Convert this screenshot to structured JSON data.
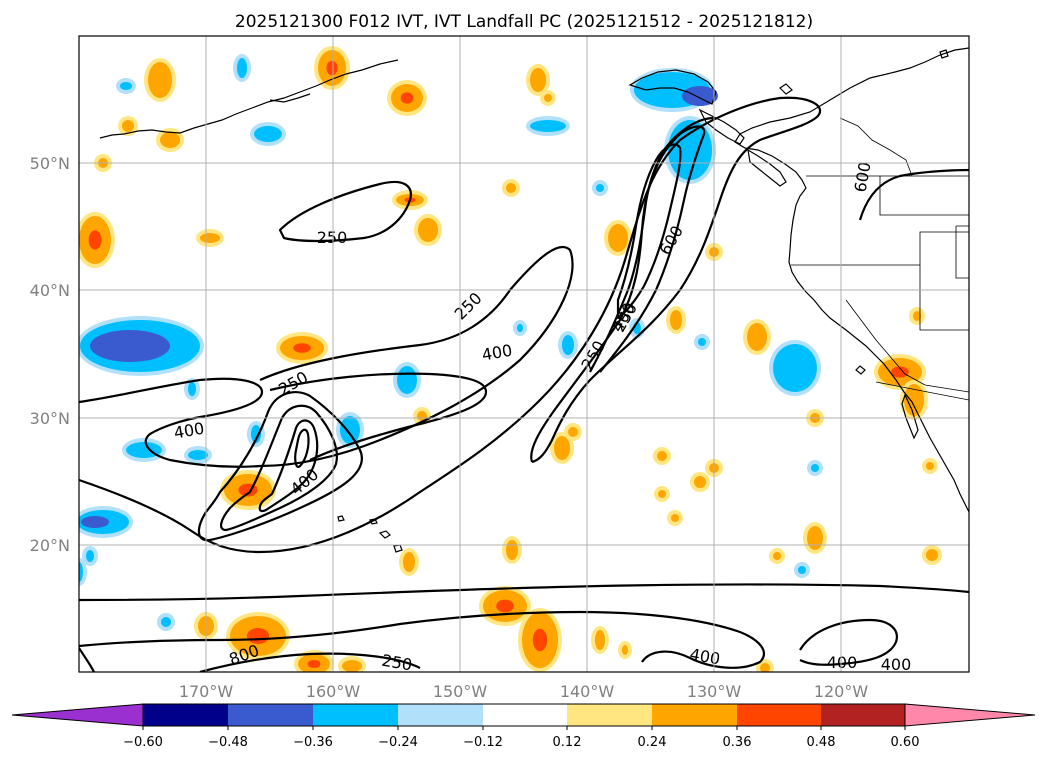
{
  "title": "2025121300 F012 IVT, IVT Landfall PC (2025121512 - 2025121812)",
  "map": {
    "lon_range": [
      -180,
      -110
    ],
    "lat_range": [
      10,
      60
    ],
    "gridlines": true,
    "lat_ticks": [
      "20°N",
      "30°N",
      "40°N",
      "50°N"
    ],
    "lon_ticks": [
      "170°W",
      "160°W",
      "150°W",
      "140°W",
      "130°W",
      "120°W"
    ]
  },
  "ivt_contours": {
    "levels": [
      "250",
      "400",
      "600",
      "800"
    ],
    "labels": [
      {
        "text": "250"
      },
      {
        "text": "250"
      },
      {
        "text": "400"
      },
      {
        "text": "250"
      },
      {
        "text": "400"
      },
      {
        "text": "600"
      },
      {
        "text": "400"
      },
      {
        "text": "250"
      },
      {
        "text": "600"
      },
      {
        "text": "400"
      },
      {
        "text": "800"
      },
      {
        "text": "250"
      },
      {
        "text": "400"
      },
      {
        "text": "400"
      },
      {
        "text": "400"
      },
      {
        "text": "250"
      }
    ]
  },
  "colorbar": {
    "ticks": [
      "−0.60",
      "−0.48",
      "−0.36",
      "−0.24",
      "−0.12",
      "0.12",
      "0.24",
      "0.36",
      "0.48",
      "0.60"
    ],
    "colors": [
      "#9b30d0",
      "#00008b",
      "#3a5bd0",
      "#00bfff",
      "#b0e0fa",
      "#ffffff",
      "#ffe680",
      "#ffa500",
      "#ff4500",
      "#b22222",
      "#ff88aa"
    ]
  },
  "shading_colors": {
    "pos1": "#ffe680",
    "pos2": "#ffa500",
    "pos3": "#ff4500",
    "neg1": "#b0e0fa",
    "neg2": "#00bfff",
    "neg3": "#3a5bd0"
  }
}
